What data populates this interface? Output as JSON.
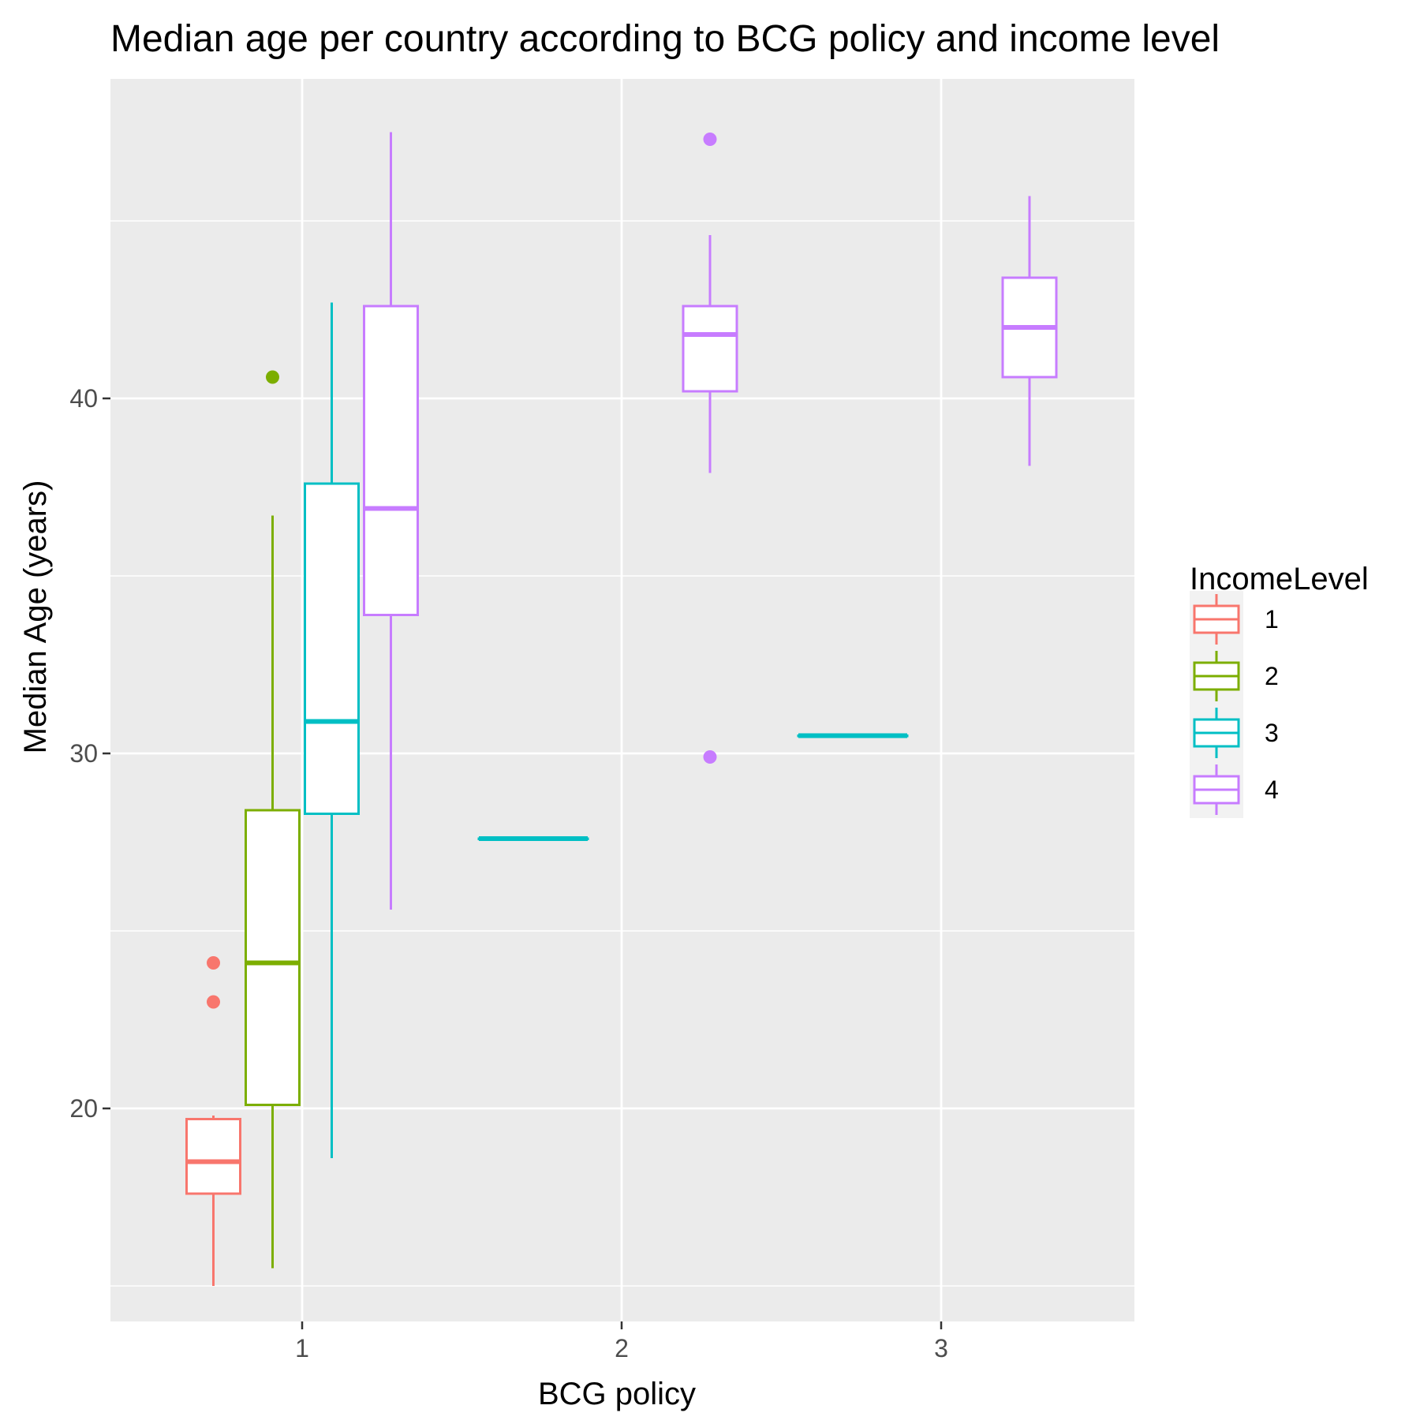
{
  "chart_data": {
    "type": "boxplot",
    "title": "Median age per country according to BCG policy and income level",
    "xlabel": "BCG policy",
    "ylabel": "Median Age (years)",
    "categories": [
      "1",
      "2",
      "3"
    ],
    "y_ticks": [
      20,
      30,
      40
    ],
    "ylim": [
      14,
      49
    ],
    "grid": true,
    "legend": {
      "title": "IncomeLevel",
      "position": "right",
      "entries": [
        "1",
        "2",
        "3",
        "4"
      ]
    },
    "colors": {
      "1": "#F8766D",
      "2": "#7CAE00",
      "3": "#00BFC4",
      "4": "#C77CFF",
      "panel": "#EBEBEB",
      "grid": "#FFFFFF"
    },
    "boxes": [
      {
        "category": "1",
        "level": "1",
        "whisker_low": 15.0,
        "q1": 17.6,
        "median": 18.5,
        "q3": 19.7,
        "whisker_high": 19.8,
        "outliers": [
          23.0,
          24.1
        ]
      },
      {
        "category": "1",
        "level": "2",
        "whisker_low": 15.5,
        "q1": 20.1,
        "median": 24.1,
        "q3": 28.4,
        "whisker_high": 36.7,
        "outliers": [
          40.6
        ]
      },
      {
        "category": "1",
        "level": "3",
        "whisker_low": 18.6,
        "q1": 28.3,
        "median": 30.9,
        "q3": 37.6,
        "whisker_high": 42.7,
        "outliers": []
      },
      {
        "category": "1",
        "level": "4",
        "whisker_low": 25.6,
        "q1": 33.9,
        "median": 36.9,
        "q3": 42.6,
        "whisker_high": 47.5,
        "outliers": []
      },
      {
        "category": "2",
        "level": "3",
        "whisker_low": 27.6,
        "q1": 27.6,
        "median": 27.6,
        "q3": 27.6,
        "whisker_high": 27.6,
        "outliers": []
      },
      {
        "category": "2",
        "level": "4",
        "whisker_low": 37.9,
        "q1": 40.2,
        "median": 41.8,
        "q3": 42.6,
        "whisker_high": 44.6,
        "outliers": [
          29.9,
          47.3
        ]
      },
      {
        "category": "3",
        "level": "3",
        "whisker_low": 30.5,
        "q1": 30.5,
        "median": 30.5,
        "q3": 30.5,
        "whisker_high": 30.5,
        "outliers": []
      },
      {
        "category": "3",
        "level": "4",
        "whisker_low": 38.1,
        "q1": 40.6,
        "median": 42.0,
        "q3": 43.4,
        "whisker_high": 45.7,
        "outliers": []
      }
    ]
  }
}
